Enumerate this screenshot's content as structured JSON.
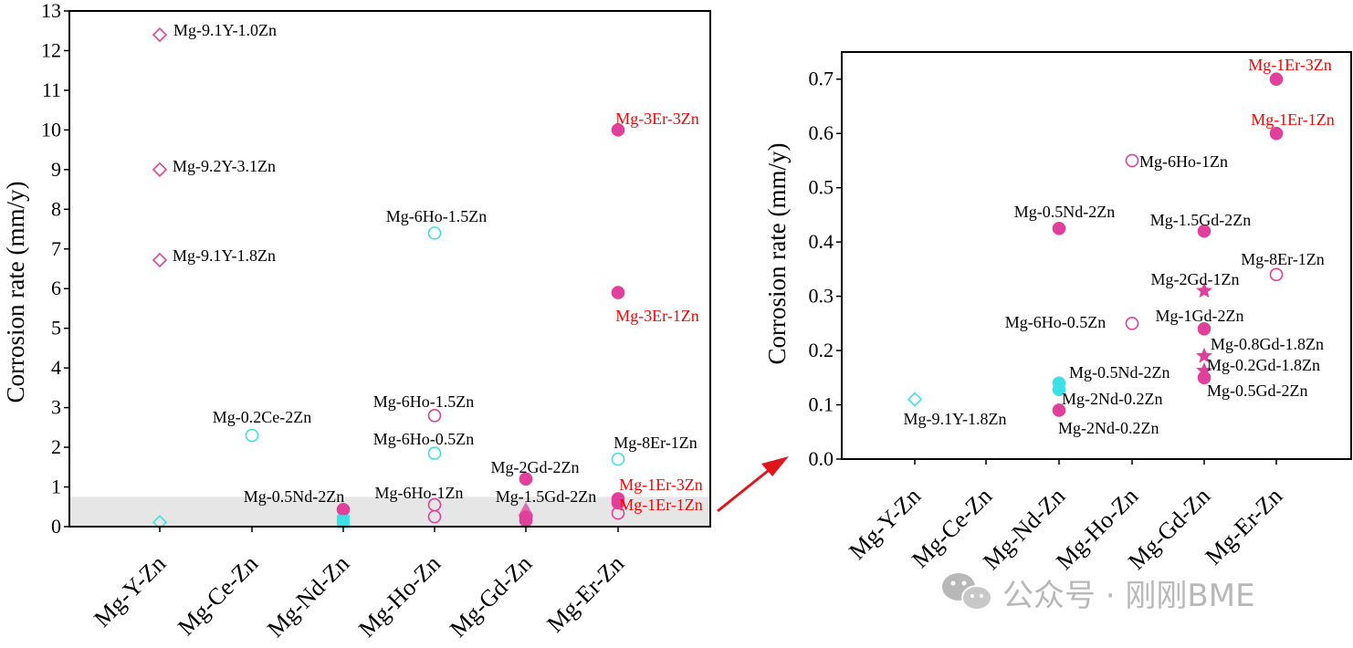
{
  "chart_data": [
    {
      "type": "scatter",
      "ylabel": "Corrosion rate (mm/y)",
      "xlabel": "",
      "categories": [
        "Mg-Y-Zn",
        "Mg-Ce-Zn",
        "Mg-Nd-Zn",
        "Mg-Ho-Zn",
        "Mg-Gd-Zn",
        "Mg-Er-Zn"
      ],
      "ylim": [
        0,
        13
      ],
      "yticks": [
        0,
        1,
        2,
        3,
        4,
        5,
        6,
        7,
        8,
        9,
        10,
        11,
        12,
        13
      ],
      "highlight_band": [
        0,
        0.75
      ],
      "points": [
        {
          "category": "Mg-Y-Zn",
          "value": 12.4,
          "label": "Mg-9.1Y-1.0Zn",
          "marker": "diamond",
          "color": "#e0409c",
          "filled": false
        },
        {
          "category": "Mg-Y-Zn",
          "value": 9.0,
          "label": "Mg-9.2Y-3.1Zn",
          "marker": "diamond",
          "color": "#e0409c",
          "filled": false
        },
        {
          "category": "Mg-Y-Zn",
          "value": 6.72,
          "label": "Mg-9.1Y-1.8Zn",
          "marker": "diamond",
          "color": "#e0409c",
          "filled": false
        },
        {
          "category": "Mg-Y-Zn",
          "value": 0.11,
          "label": "",
          "marker": "diamond",
          "color": "#3ee0e8",
          "filled": false
        },
        {
          "category": "Mg-Ce-Zn",
          "value": 2.3,
          "label": "Mg-0.2Ce-2Zn",
          "marker": "circle",
          "color": "#3ee0e8",
          "filled": false
        },
        {
          "category": "Mg-Nd-Zn",
          "value": 0.43,
          "label": "Mg-0.5Nd-2Zn",
          "marker": "circle",
          "color": "#e0409c",
          "filled": true
        },
        {
          "category": "Mg-Nd-Zn",
          "value": 0.13,
          "label": "",
          "marker": "square",
          "color": "#3ee0e8",
          "filled": true
        },
        {
          "category": "Mg-Ho-Zn",
          "value": 7.4,
          "label": "Mg-6Ho-1.5Zn",
          "marker": "circle",
          "color": "#3ee0e8",
          "filled": false
        },
        {
          "category": "Mg-Ho-Zn",
          "value": 2.8,
          "label": "Mg-6Ho-1.5Zn",
          "marker": "circle",
          "color": "#e0409c",
          "filled": false
        },
        {
          "category": "Mg-Ho-Zn",
          "value": 1.85,
          "label": "Mg-6Ho-0.5Zn",
          "marker": "circle",
          "color": "#3ee0e8",
          "filled": false
        },
        {
          "category": "Mg-Ho-Zn",
          "value": 0.55,
          "label": "Mg-6Ho-1Zn",
          "marker": "circle",
          "color": "#e0409c",
          "filled": false
        },
        {
          "category": "Mg-Ho-Zn",
          "value": 0.25,
          "label": "",
          "marker": "circle",
          "color": "#e0409c",
          "filled": false
        },
        {
          "category": "Mg-Gd-Zn",
          "value": 1.2,
          "label": "Mg-2Gd-2Zn",
          "marker": "circle",
          "color": "#e0409c",
          "filled": true
        },
        {
          "category": "Mg-Gd-Zn",
          "value": 0.42,
          "label": "Mg-1.5Gd-2Zn",
          "marker": "triangle",
          "color": "#e0409c",
          "filled": true
        },
        {
          "category": "Mg-Gd-Zn",
          "value": 0.24,
          "label": "",
          "marker": "circle",
          "color": "#e0409c",
          "filled": true
        },
        {
          "category": "Mg-Gd-Zn",
          "value": 0.15,
          "label": "",
          "marker": "circle",
          "color": "#e0409c",
          "filled": true
        },
        {
          "category": "Mg-Er-Zn",
          "value": 10.0,
          "label": "Mg-3Er-3Zn",
          "marker": "circle",
          "color": "#e0409c",
          "filled": true,
          "label_color": "#ff0000"
        },
        {
          "category": "Mg-Er-Zn",
          "value": 5.9,
          "label": "Mg-3Er-1Zn",
          "marker": "circle",
          "color": "#e0409c",
          "filled": true,
          "label_color": "#ff0000"
        },
        {
          "category": "Mg-Er-Zn",
          "value": 1.7,
          "label": "Mg-8Er-1Zn",
          "marker": "circle",
          "color": "#3ee0e8",
          "filled": false
        },
        {
          "category": "Mg-Er-Zn",
          "value": 0.7,
          "label": "Mg-1Er-3Zn",
          "marker": "circle",
          "color": "#e0409c",
          "filled": true,
          "label_color": "#ff0000"
        },
        {
          "category": "Mg-Er-Zn",
          "value": 0.6,
          "label": "Mg-1Er-1Zn",
          "marker": "circle",
          "color": "#e0409c",
          "filled": true,
          "label_color": "#ff0000"
        },
        {
          "category": "Mg-Er-Zn",
          "value": 0.34,
          "label": "",
          "marker": "circle",
          "color": "#e0409c",
          "filled": false
        }
      ]
    },
    {
      "type": "scatter",
      "ylabel": "Corrosion rate (mm/y)",
      "xlabel": "",
      "categories": [
        "Mg-Y-Zn",
        "Mg-Ce-Zn",
        "Mg-Nd-Zn",
        "Mg-Ho-Zn",
        "Mg-Gd-Zn",
        "Mg-Er-Zn"
      ],
      "ylim": [
        0,
        0.75
      ],
      "yticks": [
        "0.0",
        "0.1",
        "0.2",
        "0.3",
        "0.4",
        "0.5",
        "0.6",
        "0.7"
      ],
      "points": [
        {
          "category": "Mg-Y-Zn",
          "value": 0.11,
          "label": "Mg-9.1Y-1.8Zn",
          "marker": "diamond",
          "color": "#3ee0e8",
          "filled": false
        },
        {
          "category": "Mg-Nd-Zn",
          "value": 0.425,
          "label": "Mg-0.5Nd-2Zn",
          "marker": "circle",
          "color": "#e0409c",
          "filled": true
        },
        {
          "category": "Mg-Nd-Zn",
          "value": 0.14,
          "label": "Mg-0.5Nd-2Zn",
          "marker": "circle",
          "color": "#3ee0e8",
          "filled": true
        },
        {
          "category": "Mg-Nd-Zn",
          "value": 0.128,
          "label": "Mg-2Nd-0.2Zn",
          "marker": "circle",
          "color": "#3ee0e8",
          "filled": true
        },
        {
          "category": "Mg-Nd-Zn",
          "value": 0.09,
          "label": "Mg-2Nd-0.2Zn",
          "marker": "circle",
          "color": "#e0409c",
          "filled": true
        },
        {
          "category": "Mg-Ho-Zn",
          "value": 0.55,
          "label": "Mg-6Ho-1Zn",
          "marker": "circle",
          "color": "#e0409c",
          "filled": false
        },
        {
          "category": "Mg-Ho-Zn",
          "value": 0.25,
          "label": "Mg-6Ho-0.5Zn",
          "marker": "circle",
          "color": "#e0409c",
          "filled": false
        },
        {
          "category": "Mg-Gd-Zn",
          "value": 0.42,
          "label": "Mg-1.5Gd-2Zn",
          "marker": "circle",
          "color": "#e0409c",
          "filled": true
        },
        {
          "category": "Mg-Gd-Zn",
          "value": 0.31,
          "label": "Mg-2Gd-1Zn",
          "marker": "star",
          "color": "#e0409c",
          "filled": true
        },
        {
          "category": "Mg-Gd-Zn",
          "value": 0.24,
          "label": "Mg-1Gd-2Zn",
          "marker": "circle",
          "color": "#e0409c",
          "filled": true
        },
        {
          "category": "Mg-Gd-Zn",
          "value": 0.19,
          "label": "Mg-0.8Gd-1.8Zn",
          "marker": "star",
          "color": "#e0409c",
          "filled": true
        },
        {
          "category": "Mg-Gd-Zn",
          "value": 0.163,
          "label": "Mg-0.2Gd-1.8Zn",
          "marker": "star",
          "color": "#e0409c",
          "filled": true
        },
        {
          "category": "Mg-Gd-Zn",
          "value": 0.15,
          "label": "Mg-0.5Gd-2Zn",
          "marker": "circle",
          "color": "#e0409c",
          "filled": true
        },
        {
          "category": "Mg-Er-Zn",
          "value": 0.7,
          "label": "Mg-1Er-3Zn",
          "marker": "circle",
          "color": "#e0409c",
          "filled": true,
          "label_color": "#ff0000"
        },
        {
          "category": "Mg-Er-Zn",
          "value": 0.6,
          "label": "Mg-1Er-1Zn",
          "marker": "circle",
          "color": "#e0409c",
          "filled": true,
          "label_color": "#ff0000"
        },
        {
          "category": "Mg-Er-Zn",
          "value": 0.34,
          "label": "Mg-8Er-1Zn",
          "marker": "circle",
          "color": "#e0409c",
          "filled": false
        }
      ]
    }
  ],
  "watermark": {
    "text": "公众号 · 刚刚BME",
    "icon": "wechat-icon"
  },
  "colors": {
    "pink": "#e0409c",
    "cyan": "#3ee0e8",
    "red": "#ff0000",
    "band": "#e6e6e6",
    "arrow": "#e0161b"
  }
}
